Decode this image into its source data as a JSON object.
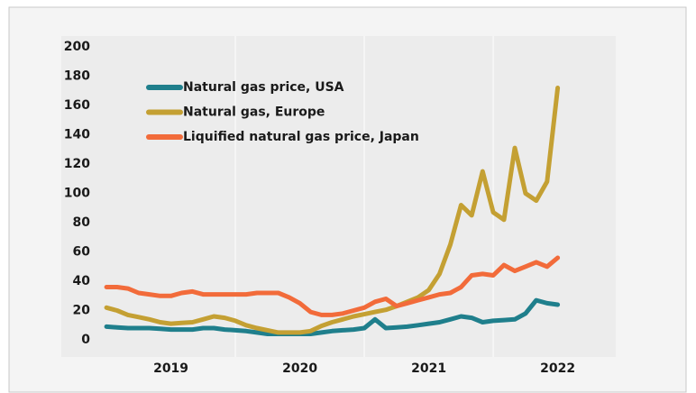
{
  "chart_data": {
    "type": "line",
    "x": [
      2019,
      2019.083,
      2019.167,
      2019.25,
      2019.333,
      2019.417,
      2019.5,
      2019.583,
      2019.667,
      2019.75,
      2019.833,
      2019.917,
      2020,
      2020.083,
      2020.167,
      2020.25,
      2020.333,
      2020.417,
      2020.5,
      2020.583,
      2020.667,
      2020.75,
      2020.833,
      2020.917,
      2021,
      2021.083,
      2021.167,
      2021.25,
      2021.333,
      2021.417,
      2021.5,
      2021.583,
      2021.667,
      2021.75,
      2021.833,
      2021.917,
      2022,
      2022.083,
      2022.167,
      2022.25,
      2022.333,
      2022.417,
      2022.5
    ],
    "series": [
      {
        "name": "Natural gas price, USA",
        "color": "#1f7f8c",
        "values": [
          9,
          8.5,
          8,
          8,
          8,
          7.5,
          7,
          7,
          7,
          8,
          8,
          7,
          6.5,
          6,
          5,
          4,
          4,
          4,
          4,
          4,
          5,
          6,
          6.5,
          7,
          8,
          14,
          8,
          8.5,
          9,
          10,
          11,
          12,
          14,
          16,
          15,
          12,
          13,
          13.5,
          14,
          18,
          27,
          25,
          24
        ]
      },
      {
        "name": "Natural gas, Europe",
        "color": "#c4a033",
        "values": [
          22,
          20,
          17,
          15.5,
          14,
          12,
          11,
          11.5,
          12,
          14,
          16,
          15,
          13,
          10,
          8,
          6.5,
          5,
          5,
          5,
          6,
          9.5,
          12,
          14,
          16,
          17.5,
          19,
          20.5,
          23,
          26,
          29,
          34,
          45,
          65,
          92,
          85,
          115,
          87,
          82,
          131,
          100,
          95,
          108,
          172
        ]
      },
      {
        "name": "Liquified natural gas price, Japan",
        "color": "#f26b3a",
        "values": [
          36,
          36,
          35,
          32,
          31,
          30,
          30,
          32,
          33,
          31,
          31,
          31,
          31,
          31,
          32,
          32,
          32,
          29,
          25,
          19,
          17,
          17,
          18,
          20,
          22,
          26,
          28,
          23,
          25,
          27,
          29,
          31,
          32,
          36,
          44,
          45,
          44,
          51,
          47,
          50,
          53,
          50,
          56
        ]
      }
    ],
    "xlim": [
      2018.65,
      2022.95
    ],
    "xticks": [
      {
        "value": 2019.5,
        "label": "2019"
      },
      {
        "value": 2020.5,
        "label": "2020"
      },
      {
        "value": 2021.5,
        "label": "2021"
      },
      {
        "value": 2022.5,
        "label": "2022"
      }
    ],
    "xgrid": [
      2020,
      2021,
      2022
    ],
    "ylim": [
      0,
      200
    ],
    "yticks": [
      0,
      20,
      40,
      60,
      80,
      100,
      120,
      140,
      160,
      180,
      200
    ],
    "legend": "upper left"
  }
}
